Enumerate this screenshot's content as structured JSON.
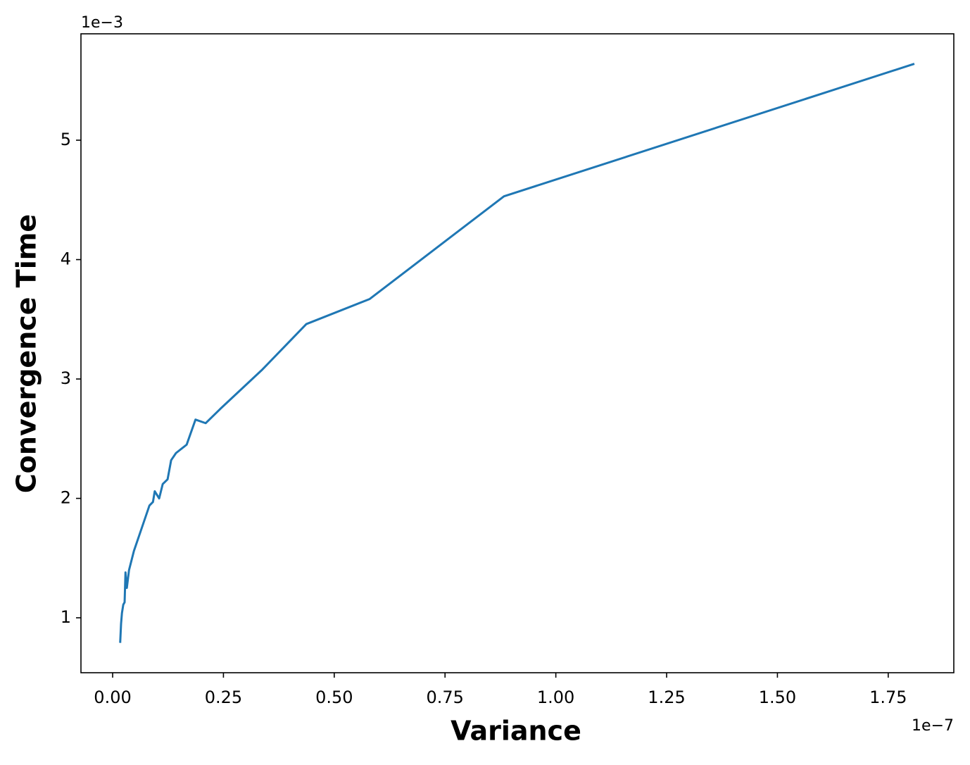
{
  "chart_data": {
    "type": "line",
    "x_label": "Variance",
    "y_label": "Convergence Time",
    "x_offset_label": "1e−7",
    "y_offset_label": "1e−3",
    "color": "#1f77b4",
    "x": [
      0.017,
      0.019,
      0.021,
      0.024,
      0.027,
      0.029,
      0.032,
      0.037,
      0.048,
      0.06,
      0.083,
      0.091,
      0.095,
      0.105,
      0.113,
      0.124,
      0.132,
      0.143,
      0.167,
      0.187,
      0.21,
      0.243,
      0.338,
      0.437,
      0.58,
      0.883,
      1.809
    ],
    "values": [
      0.79,
      0.95,
      1.04,
      1.11,
      1.13,
      1.38,
      1.25,
      1.4,
      1.56,
      1.69,
      1.94,
      1.97,
      2.06,
      2.0,
      2.12,
      2.16,
      2.32,
      2.38,
      2.45,
      2.66,
      2.63,
      2.75,
      3.08,
      3.46,
      3.67,
      4.53,
      5.64
    ],
    "xlim": [
      -0.0715,
      1.898
    ],
    "ylim": [
      0.54,
      5.891
    ],
    "xticks": [
      {
        "value": 0,
        "label": "0.00"
      },
      0.25,
      {
        "value": 0.5,
        "label": "0.50"
      },
      0.75,
      {
        "value": 1,
        "label": "1.00"
      },
      1.25,
      {
        "value": 1.5,
        "label": "1.50"
      },
      1.75
    ],
    "yticks": [
      1,
      2,
      3,
      4,
      5
    ],
    "grid": false
  }
}
